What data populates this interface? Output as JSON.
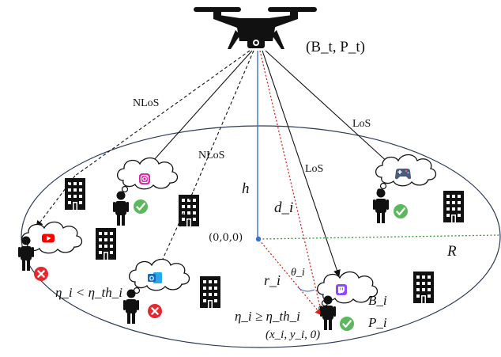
{
  "diagram": {
    "uav_params": "(B_t, P_t)",
    "links": {
      "nlos_1": "NLoS",
      "nlos_2": "NLoS",
      "los_1": "LoS",
      "los_2": "LoS"
    },
    "symbols": {
      "height": "h",
      "distance": "d_i",
      "radius": "R",
      "ground_distance": "r_i",
      "angle": "θ_i"
    },
    "origin_label": "(0,0,0)",
    "user_coord": "(x_i, y_i, 0)",
    "user_bandwidth": "B_i",
    "user_power": "P_i",
    "condition_fail": "η_i < η_th_i",
    "condition_pass": "η_i ≥ η_th_i",
    "apps": [
      "instagram-icon",
      "youtube-icon",
      "outlook-icon",
      "twitch-icon",
      "gamepad-icon"
    ],
    "colors": {
      "success": "#5cb85c",
      "fail": "#e8262d",
      "instagram": "#d6249f",
      "youtube": "#ff0000",
      "outlook": "#0f6cbd",
      "twitch": "#9146ff",
      "height_line": "#3b6fd1",
      "radius_line": "#2e9a2e",
      "ground_line": "#e02020"
    }
  }
}
